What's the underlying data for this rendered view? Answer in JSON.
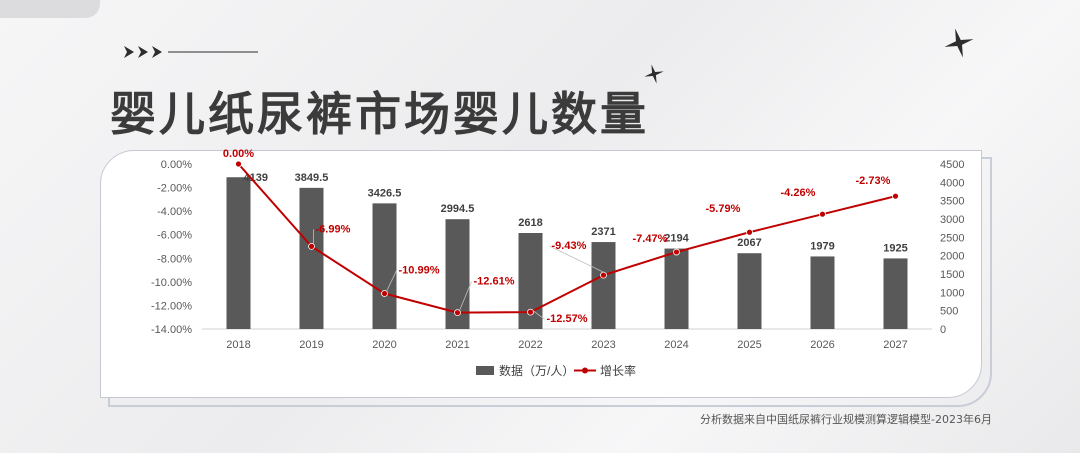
{
  "title": "婴儿纸尿裤市场婴儿数量",
  "source_note": "分析数据来自中国纸尿裤行业规模测算逻辑模型-2023年6月",
  "colors": {
    "bar": "#595959",
    "line": "#c00000",
    "label_growth": "#c00000",
    "label_value": "#404040",
    "title": "#3b3b3b"
  },
  "chart_data": {
    "type": "bar",
    "categories": [
      "2018",
      "2019",
      "2020",
      "2021",
      "2022",
      "2023",
      "2024",
      "2025",
      "2026",
      "2027"
    ],
    "series": [
      {
        "name": "数据（万/人）",
        "type": "bar",
        "axis": "right",
        "values": [
          4139,
          3849.5,
          3426.5,
          2994.5,
          2618,
          2371,
          2194,
          2067,
          1979,
          1925
        ],
        "labels": [
          "4139",
          "3849.5",
          "3426.5",
          "2994.5",
          "2618",
          "2371",
          "2194",
          "2067",
          "1979",
          "1925"
        ]
      },
      {
        "name": "增长率",
        "type": "line",
        "axis": "left",
        "values": [
          0.0,
          -6.99,
          -10.99,
          -12.61,
          -12.57,
          -9.43,
          -7.47,
          -5.79,
          -4.26,
          -2.73
        ],
        "labels": [
          "0.00%",
          "-6.99%",
          "-10.99%",
          "-12.61%",
          "-12.57%",
          "-9.43%",
          "-7.47%",
          "-5.79%",
          "-4.26%",
          "-2.73%"
        ]
      }
    ],
    "left_axis": {
      "range": [
        -14,
        0
      ],
      "ticks": [
        "0.00%",
        "-2.00%",
        "-4.00%",
        "-6.00%",
        "-8.00%",
        "-10.00%",
        "-12.00%",
        "-14.00%"
      ]
    },
    "right_axis": {
      "range": [
        0,
        4500
      ],
      "ticks": [
        "4500",
        "4000",
        "3500",
        "3000",
        "2500",
        "2000",
        "1500",
        "1000",
        "500",
        "0"
      ]
    },
    "legend_position": "bottom",
    "grid": false
  }
}
